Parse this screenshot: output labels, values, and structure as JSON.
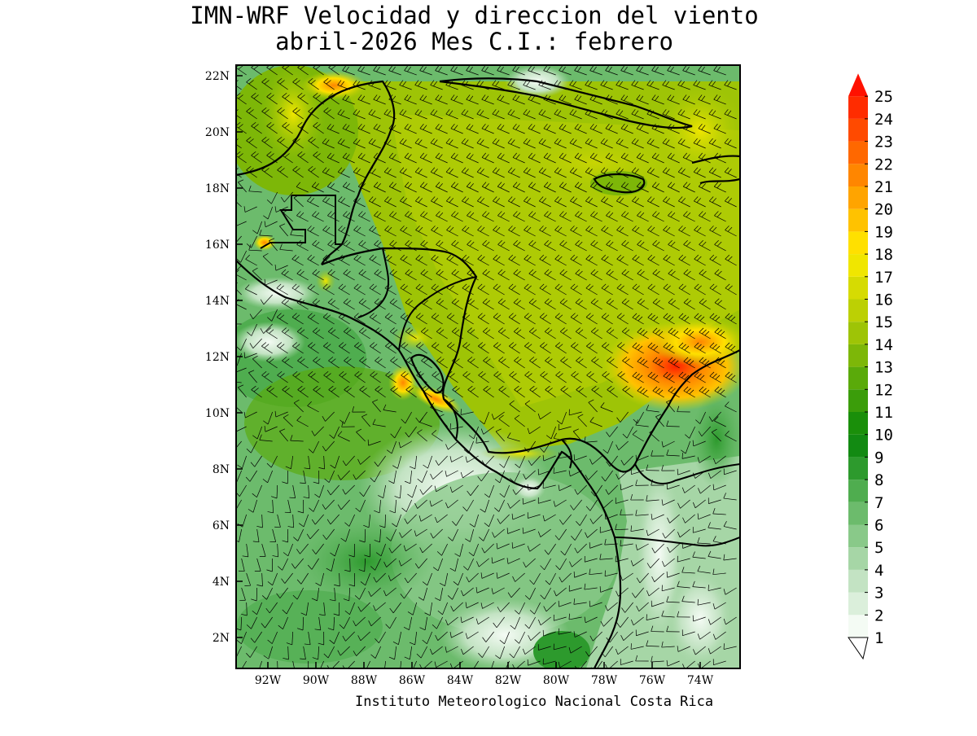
{
  "title_line1": "IMN-WRF Velocidad y direccion del viento",
  "title_line2": "abril-2026 Mes C.I.: febrero",
  "credit": "Instituto Meteorologico Nacional Costa Rica",
  "lat_labels": [
    "22N",
    "20N",
    "18N",
    "16N",
    "14N",
    "12N",
    "10N",
    "8N",
    "6N",
    "4N",
    "2N"
  ],
  "lon_labels": [
    "92W",
    "90W",
    "88W",
    "86W",
    "84W",
    "82W",
    "80W",
    "78W",
    "76W",
    "74W"
  ],
  "colorbar": {
    "levels": [
      "1",
      "2",
      "3",
      "4",
      "5",
      "6",
      "7",
      "8",
      "9",
      "10",
      "11",
      "12",
      "13",
      "14",
      "15",
      "16",
      "17",
      "18",
      "19",
      "20",
      "21",
      "22",
      "23",
      "24",
      "25"
    ],
    "colors": [
      "#f4fbf4",
      "#dbefdb",
      "#c3e3c3",
      "#a6d6a6",
      "#89c989",
      "#6cbb6c",
      "#4fad4f",
      "#2d9a2d",
      "#128a12",
      "#1a8f0a",
      "#3b9d0a",
      "#5aaa0a",
      "#7db708",
      "#9ec406",
      "#bcd004",
      "#d6db02",
      "#f0e600",
      "#ffe000",
      "#ffc200",
      "#ffa400",
      "#ff8600",
      "#ff6800",
      "#ff4a00",
      "#ff2c00",
      "#ff0e00"
    ],
    "arrow_color": "#ff1100"
  },
  "colors": {
    "sea_base": "#7fc47f",
    "land_base": "#b9dfb9",
    "coast": "#000000",
    "barb": "#000000"
  }
}
